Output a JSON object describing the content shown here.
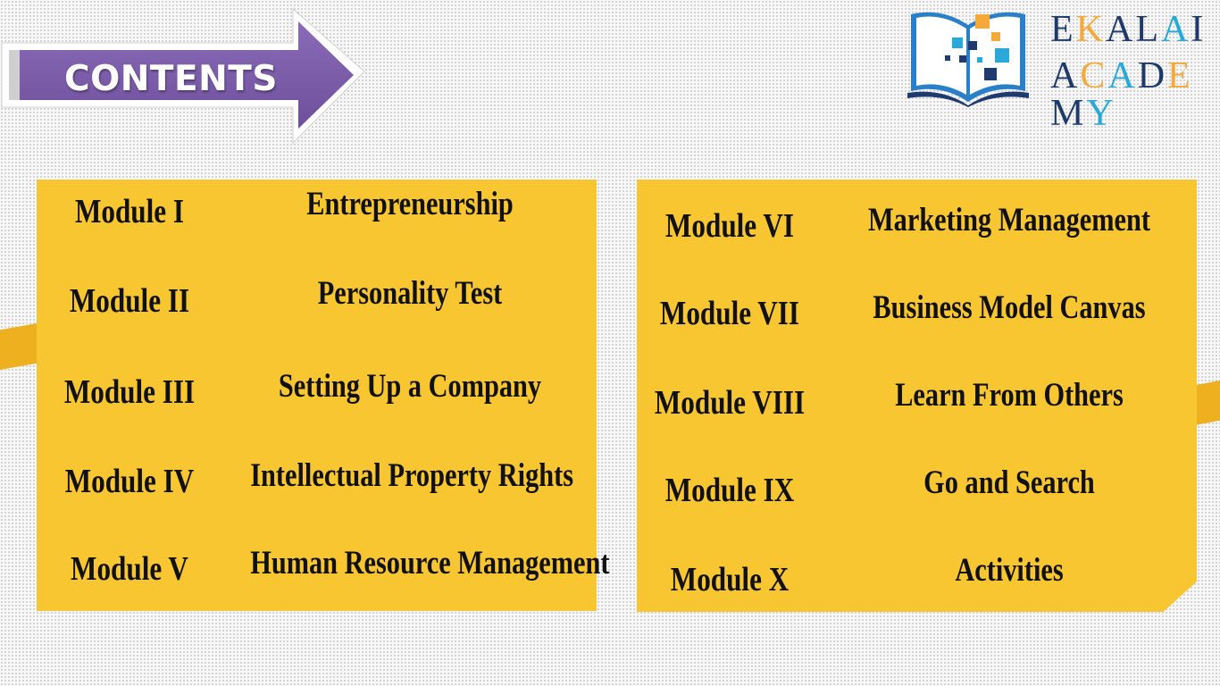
{
  "header": {
    "title": "CONTENTS"
  },
  "logo": {
    "line1": [
      {
        "ch": "E",
        "color": "#1d3a6b"
      },
      {
        "ch": "K",
        "color": "#f4a93b"
      },
      {
        "ch": "A",
        "color": "#1d3a6b"
      },
      {
        "ch": "L",
        "color": "#1d3a6b"
      },
      {
        "ch": "A",
        "color": "#2aa8d8"
      },
      {
        "ch": "I",
        "color": "#1d3a6b"
      }
    ],
    "line2": [
      {
        "ch": "A",
        "color": "#1d3a6b"
      },
      {
        "ch": "C",
        "color": "#f4a93b"
      },
      {
        "ch": "A",
        "color": "#2aa8d8"
      },
      {
        "ch": "D",
        "color": "#1d3a6b"
      },
      {
        "ch": "E",
        "color": "#f4a93b"
      },
      {
        "ch": "M",
        "color": "#1d3a6b"
      },
      {
        "ch": "Y",
        "color": "#2aa8d8"
      }
    ]
  },
  "left_panel": [
    {
      "module": "Module I",
      "topic": "Entrepreneurship"
    },
    {
      "module": "Module II",
      "topic": "Personality Test"
    },
    {
      "module": "Module III",
      "topic": "Setting Up a Company"
    },
    {
      "module": "Module IV",
      "topic": "Intellectual Property Rights"
    },
    {
      "module": "Module V",
      "topic": "Human Resource Management"
    }
  ],
  "right_panel": [
    {
      "module": "Module VI",
      "topic": "Marketing Management"
    },
    {
      "module": "Module VII",
      "topic": "Business Model Canvas"
    },
    {
      "module": "Module VIII",
      "topic": "Learn From Others"
    },
    {
      "module": "Module IX",
      "topic": "Go and Search"
    },
    {
      "module": "Module X",
      "topic": "Activities"
    }
  ],
  "colors": {
    "panel": "#f8c630",
    "tab": "#eeb01e",
    "banner": "#7b5ea7",
    "text": "#111111"
  }
}
